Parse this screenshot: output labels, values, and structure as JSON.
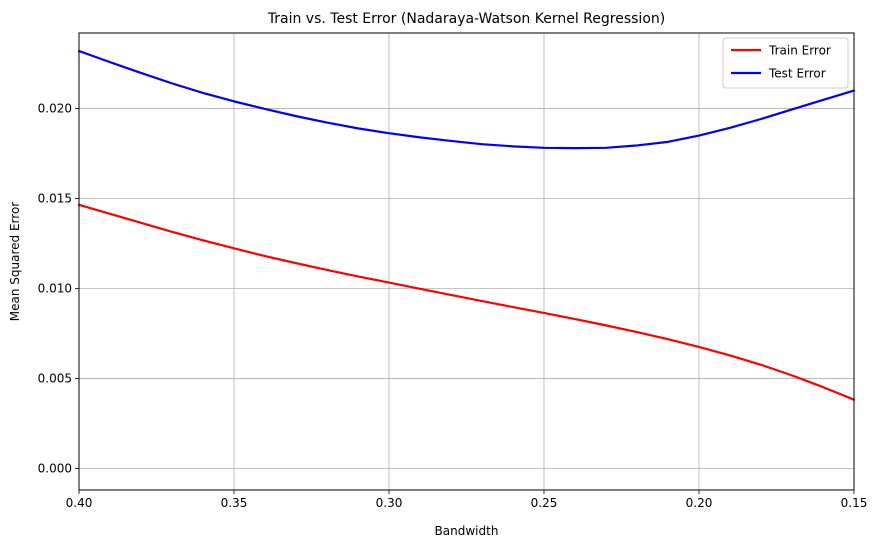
{
  "chart_data": {
    "type": "line",
    "title": "Train vs. Test Error (Nadaraya-Watson Kernel Regression)",
    "xlabel": "Bandwidth",
    "ylabel": "Mean Squared Error",
    "xlim": [
      0.4,
      0.15
    ],
    "x_inverted": true,
    "ylim": [
      -0.0012,
      0.0242
    ],
    "xticks": [
      0.4,
      0.35,
      0.3,
      0.25,
      0.2,
      0.15
    ],
    "xtick_labels": [
      "0.40",
      "0.35",
      "0.30",
      "0.25",
      "0.20",
      "0.15"
    ],
    "yticks": [
      0.0,
      0.005,
      0.01,
      0.015,
      0.02
    ],
    "ytick_labels": [
      "0.000",
      "0.005",
      "0.010",
      "0.015",
      "0.020"
    ],
    "grid": true,
    "legend_position": "top-right",
    "x": [
      0.4,
      0.39,
      0.38,
      0.37,
      0.36,
      0.35,
      0.34,
      0.33,
      0.32,
      0.31,
      0.3,
      0.29,
      0.28,
      0.27,
      0.26,
      0.25,
      0.24,
      0.23,
      0.22,
      0.21,
      0.2,
      0.19,
      0.18,
      0.17,
      0.16,
      0.15
    ],
    "series": [
      {
        "name": "Train Error",
        "color": "#ff0000",
        "values": [
          0.01465,
          0.01415,
          0.01365,
          0.01315,
          0.01268,
          0.01223,
          0.0118,
          0.01141,
          0.01103,
          0.01067,
          0.01033,
          0.00998,
          0.00964,
          0.0093,
          0.00897,
          0.00864,
          0.0083,
          0.00795,
          0.00758,
          0.00718,
          0.00675,
          0.00628,
          0.00576,
          0.00517,
          0.00452,
          0.00382
        ]
      },
      {
        "name": "Test Error",
        "color": "#0000ff",
        "values": [
          0.0232,
          0.02258,
          0.02198,
          0.0214,
          0.02087,
          0.0204,
          0.01998,
          0.01958,
          0.01922,
          0.0189,
          0.01863,
          0.0184,
          0.0182,
          0.01802,
          0.0179,
          0.01782,
          0.0178,
          0.01782,
          0.01795,
          0.01815,
          0.0185,
          0.01893,
          0.01942,
          0.01995,
          0.02048,
          0.021
        ]
      }
    ]
  }
}
